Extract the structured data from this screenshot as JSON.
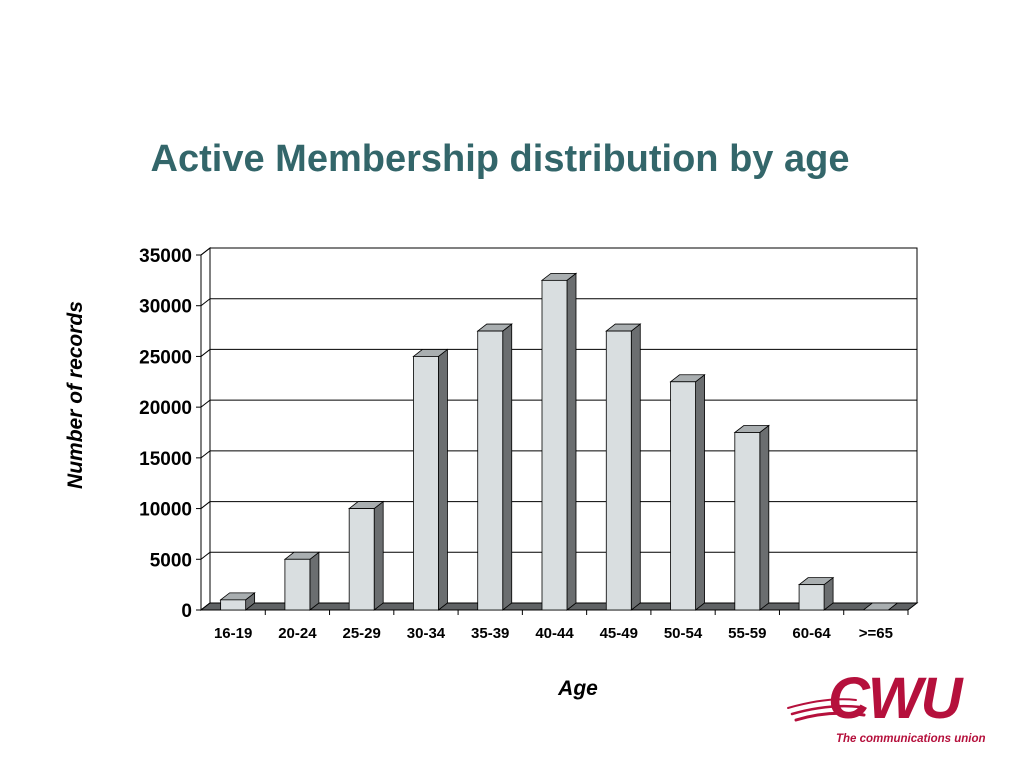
{
  "slide": {
    "title": "Active Membership distribution by age"
  },
  "logo": {
    "text": "CWU",
    "tagline": "The communications union",
    "color": "#b5103c"
  },
  "colors": {
    "title": "#33666a",
    "bar_front": "#d9dee0",
    "bar_side": "#6b6e70",
    "bar_top": "#a9aeb0",
    "floor": "#5f6264"
  },
  "chart_data": {
    "type": "bar",
    "title": "",
    "xlabel": "Age",
    "ylabel": "Number of records",
    "categories": [
      "16-19",
      "20-24",
      "25-29",
      "30-34",
      "35-39",
      "40-44",
      "45-49",
      "50-54",
      "55-59",
      "60-64",
      ">=65"
    ],
    "values": [
      1000,
      5000,
      10000,
      25000,
      27500,
      32500,
      27500,
      22500,
      17500,
      2500,
      0
    ],
    "ylim": [
      0,
      35000
    ],
    "yticks": [
      0,
      5000,
      10000,
      15000,
      20000,
      25000,
      30000,
      35000
    ],
    "grid": true,
    "legend": "none",
    "style": "3d-column"
  }
}
